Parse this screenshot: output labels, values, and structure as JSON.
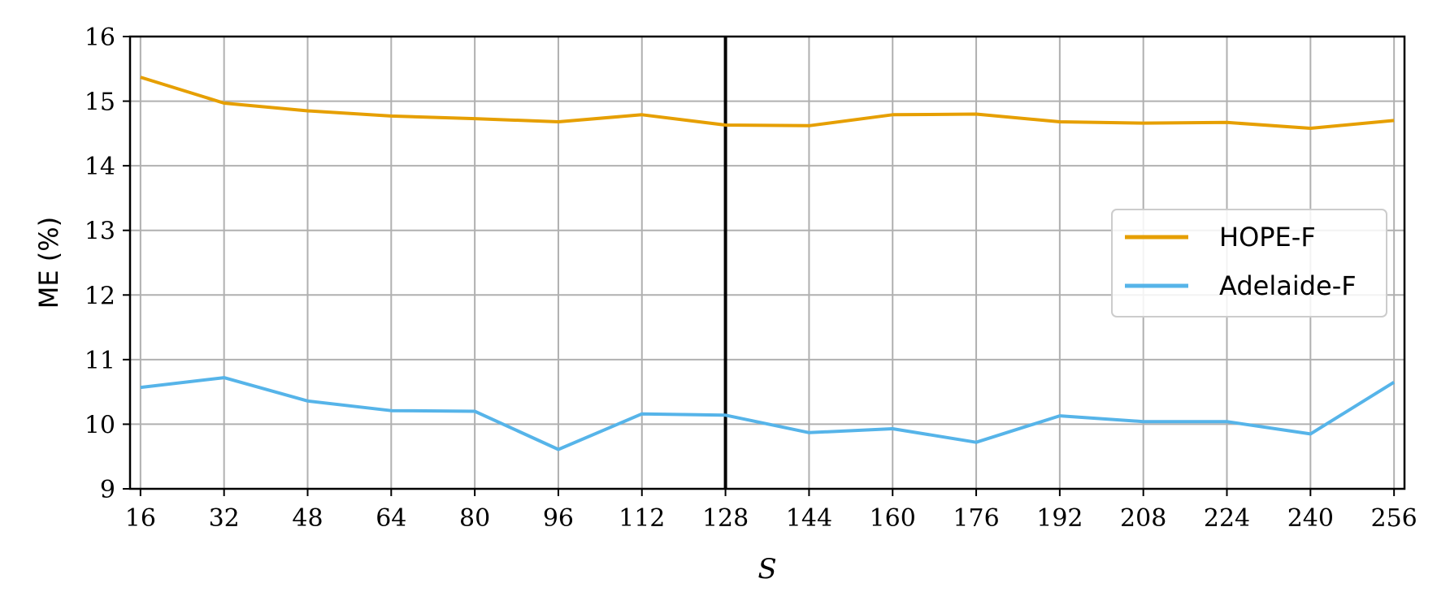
{
  "chart_data": {
    "type": "line",
    "title": "",
    "xlabel": "S",
    "ylabel": "ME (%)",
    "x": [
      16,
      32,
      48,
      64,
      80,
      96,
      112,
      128,
      144,
      160,
      176,
      192,
      208,
      224,
      240,
      256
    ],
    "xlim": [
      14,
      258
    ],
    "ylim": [
      9,
      16
    ],
    "x_ticks": [
      "16",
      "32",
      "48",
      "64",
      "80",
      "96",
      "112",
      "128",
      "144",
      "160",
      "176",
      "192",
      "208",
      "224",
      "240",
      "256"
    ],
    "y_ticks": [
      "9",
      "10",
      "11",
      "12",
      "13",
      "14",
      "15",
      "16"
    ],
    "y_tick_values": [
      9,
      10,
      11,
      12,
      13,
      14,
      15,
      16
    ],
    "grid": true,
    "vertical_line_x": 128,
    "legend_position": "right",
    "series": [
      {
        "name": "HOPE-F",
        "color": "#E69F00",
        "values": [
          15.37,
          14.97,
          14.85,
          14.77,
          14.73,
          14.68,
          14.79,
          14.63,
          14.62,
          14.79,
          14.8,
          14.68,
          14.66,
          14.67,
          14.58,
          14.7
        ]
      },
      {
        "name": "Adelaide-F",
        "color": "#56B4E9",
        "values": [
          10.57,
          10.72,
          10.36,
          10.21,
          10.2,
          9.61,
          10.16,
          10.14,
          9.87,
          9.93,
          9.72,
          10.13,
          10.04,
          10.04,
          9.85,
          10.65
        ]
      }
    ]
  }
}
